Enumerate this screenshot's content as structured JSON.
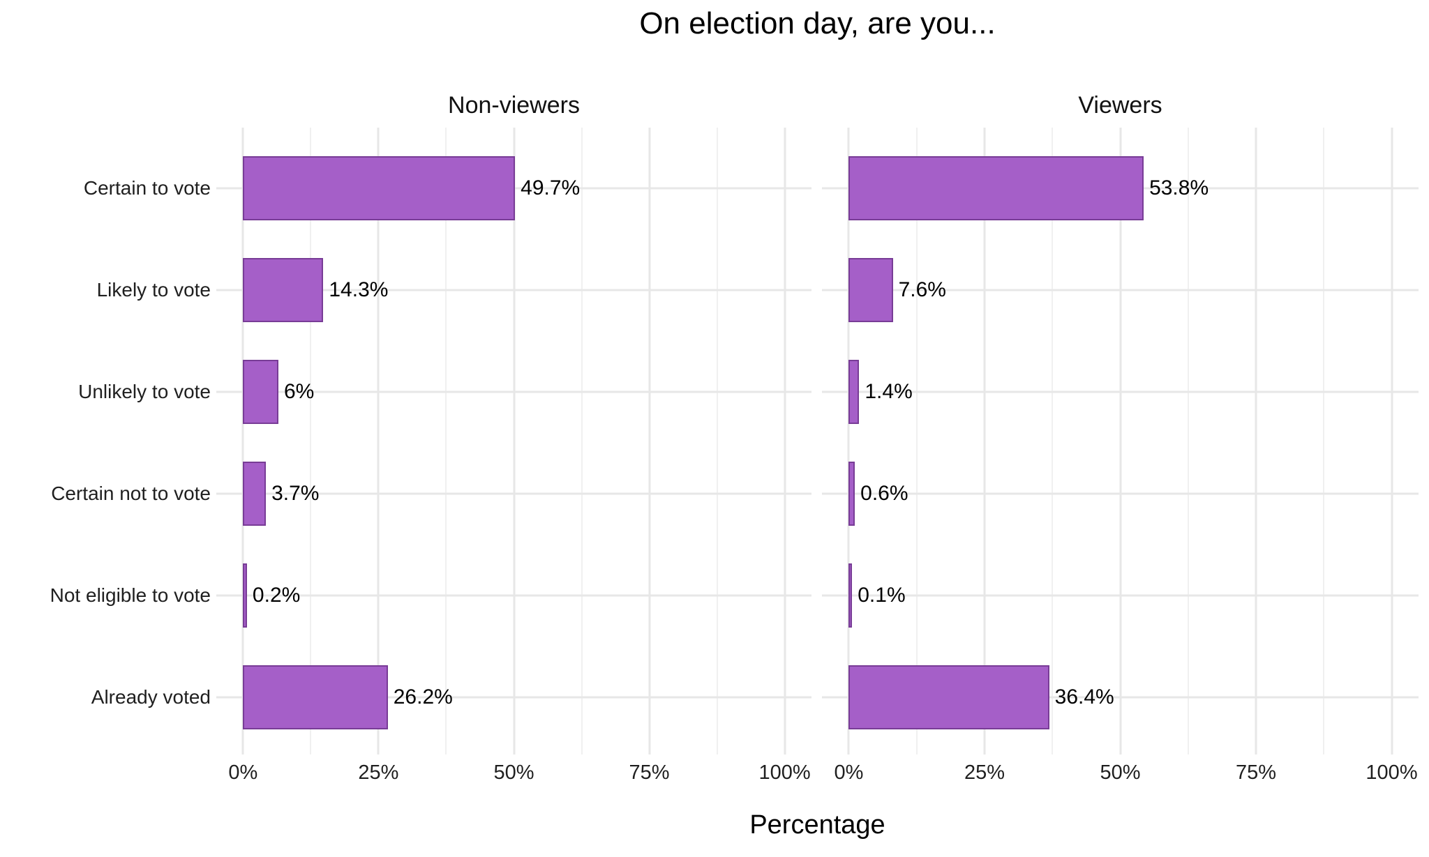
{
  "title": "On election day, are you...",
  "colors": {
    "bar_fill": "#A55FC8",
    "bar_stroke": "#783C96",
    "grid_major": "#E7E7E7",
    "grid_minor": "#F0F0F0",
    "text": "#000000",
    "axis_text": "#1F1F1F",
    "background": "#FFFFFF"
  },
  "chart_data": {
    "type": "bar",
    "orientation": "horizontal",
    "title": "On election day, are you...",
    "xlabel": "Percentage",
    "ylabel": "",
    "xlim": [
      0,
      100
    ],
    "grid": true,
    "legend": "none",
    "categories": [
      "Certain to vote",
      "Likely to vote",
      "Unlikely to vote",
      "Certain not to vote",
      "Not eligible to vote",
      "Already voted"
    ],
    "series": [
      {
        "name": "Non-viewers",
        "values": [
          49.7,
          14.3,
          6,
          3.7,
          0.2,
          26.2
        ],
        "labels": [
          "49.7%",
          "14.3%",
          "6%",
          "3.7%",
          "0.2%",
          "26.2%"
        ]
      },
      {
        "name": "Viewers",
        "values": [
          53.8,
          7.6,
          1.4,
          0.6,
          0.1,
          36.4
        ],
        "labels": [
          "53.8%",
          "7.6%",
          "1.4%",
          "0.6%",
          "0.1%",
          "36.4%"
        ]
      }
    ],
    "x_tick_labels": [
      "0%",
      "25%",
      "50%",
      "75%",
      "100%"
    ],
    "x_tick_values": [
      0,
      25,
      50,
      75,
      100
    ],
    "x_minor_values": [
      12.5,
      37.5,
      62.5,
      87.5
    ]
  }
}
